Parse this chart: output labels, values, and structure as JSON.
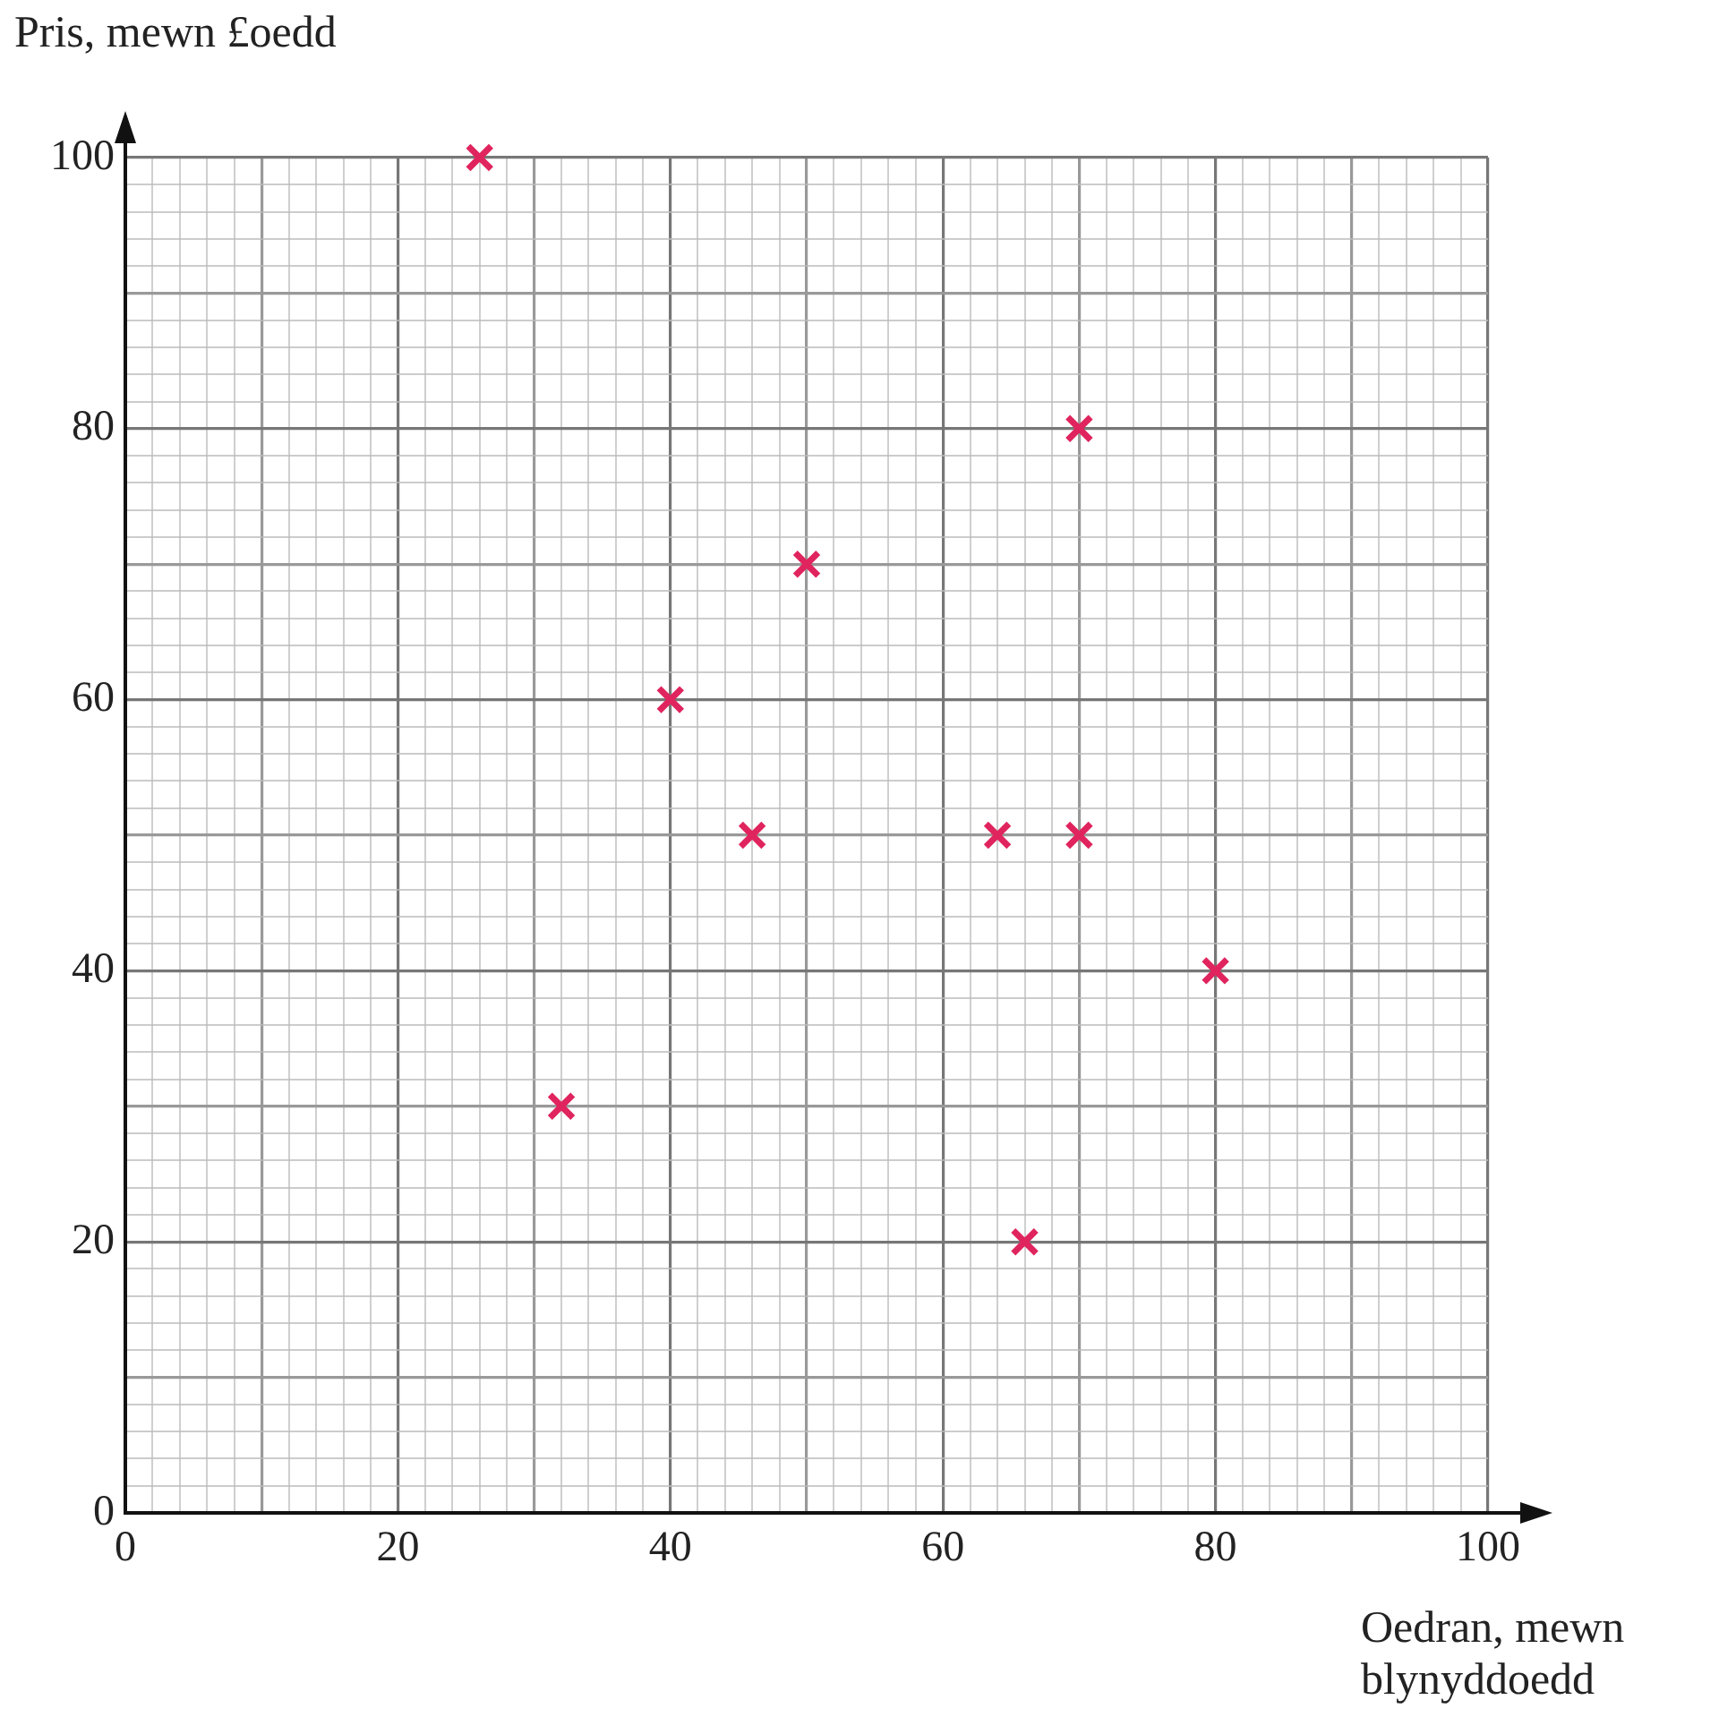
{
  "chart_data": {
    "type": "scatter",
    "xlabel": "Oedran, mewn blynyddoedd",
    "ylabel": "Pris, mewn £oedd",
    "series": [
      {
        "color": "#e0245e",
        "x": [
          26,
          32,
          40,
          46,
          50,
          64,
          66,
          70,
          70,
          80
        ],
        "values": [
          100,
          30,
          60,
          50,
          70,
          50,
          20,
          80,
          50,
          40
        ]
      }
    ],
    "marker": "cross",
    "grid": true,
    "legend": false,
    "xlim": [
      0,
      100
    ],
    "ylim": [
      0,
      100
    ],
    "xticks": [
      0,
      {
        "value": 2,
        "label": null
      },
      {
        "value": 4,
        "label": null
      },
      {
        "value": 6,
        "label": null
      },
      {
        "value": 8,
        "label": null
      },
      {
        "value": 10,
        "label": null
      },
      {
        "value": 12,
        "label": null
      },
      {
        "value": 14,
        "label": null
      },
      {
        "value": 16,
        "label": null
      },
      {
        "value": 18,
        "label": null
      },
      20,
      {
        "value": 22,
        "label": null
      },
      {
        "value": 24,
        "label": null
      },
      {
        "value": 26,
        "label": null
      },
      {
        "value": 28,
        "label": null
      },
      {
        "value": 30,
        "label": null
      },
      {
        "value": 32,
        "label": null
      },
      {
        "value": 34,
        "label": null
      },
      {
        "value": 36,
        "label": null
      },
      {
        "value": 38,
        "label": null
      },
      40,
      {
        "value": 42,
        "label": null
      },
      {
        "value": 44,
        "label": null
      },
      {
        "value": 46,
        "label": null
      },
      {
        "value": 48,
        "label": null
      },
      {
        "value": 50,
        "label": null
      },
      {
        "value": 52,
        "label": null
      },
      {
        "value": 54,
        "label": null
      },
      {
        "value": 56,
        "label": null
      },
      {
        "value": 58,
        "label": null
      },
      60,
      {
        "value": 62,
        "label": null
      },
      {
        "value": 64,
        "label": null
      },
      {
        "value": 66,
        "label": null
      },
      {
        "value": 68,
        "label": null
      },
      {
        "value": 70,
        "label": null
      },
      {
        "value": 72,
        "label": null
      },
      {
        "value": 74,
        "label": null
      },
      {
        "value": 76,
        "label": null
      },
      {
        "value": 78,
        "label": null
      },
      80,
      {
        "value": 82,
        "label": null
      },
      {
        "value": 84,
        "label": null
      },
      {
        "value": 86,
        "label": null
      },
      {
        "value": 88,
        "label": null
      },
      {
        "value": 90,
        "label": null
      },
      {
        "value": 92,
        "label": null
      },
      {
        "value": 94,
        "label": null
      },
      {
        "value": 96,
        "label": null
      },
      {
        "value": 98,
        "label": null
      },
      100
    ],
    "yticks": [
      0,
      {
        "value": 2,
        "label": null
      },
      {
        "value": 4,
        "label": null
      },
      {
        "value": 6,
        "label": null
      },
      {
        "value": 8,
        "label": null
      },
      {
        "value": 10,
        "label": null
      },
      {
        "value": 12,
        "label": null
      },
      {
        "value": 14,
        "label": null
      },
      {
        "value": 16,
        "label": null
      },
      {
        "value": 18,
        "label": null
      },
      20,
      {
        "value": 22,
        "label": null
      },
      {
        "value": 24,
        "label": null
      },
      {
        "value": 26,
        "label": null
      },
      {
        "value": 28,
        "label": null
      },
      {
        "value": 30,
        "label": null
      },
      {
        "value": 32,
        "label": null
      },
      {
        "value": 34,
        "label": null
      },
      {
        "value": 36,
        "label": null
      },
      {
        "value": 38,
        "label": null
      },
      40,
      {
        "value": 42,
        "label": null
      },
      {
        "value": 44,
        "label": null
      },
      {
        "value": 46,
        "label": null
      },
      {
        "value": 48,
        "label": null
      },
      {
        "value": 50,
        "label": null
      },
      {
        "value": 52,
        "label": null
      },
      {
        "value": 54,
        "label": null
      },
      {
        "value": 56,
        "label": null
      },
      {
        "value": 58,
        "label": null
      },
      60,
      {
        "value": 62,
        "label": null
      },
      {
        "value": 64,
        "label": null
      },
      {
        "value": 66,
        "label": null
      },
      {
        "value": 68,
        "label": null
      },
      {
        "value": 70,
        "label": null
      },
      {
        "value": 72,
        "label": null
      },
      {
        "value": 74,
        "label": null
      },
      {
        "value": 76,
        "label": null
      },
      {
        "value": 78,
        "label": null
      },
      80,
      {
        "value": 82,
        "label": null
      },
      {
        "value": 84,
        "label": null
      },
      {
        "value": 86,
        "label": null
      },
      {
        "value": 88,
        "label": null
      },
      {
        "value": 90,
        "label": null
      },
      {
        "value": 92,
        "label": null
      },
      {
        "value": 94,
        "label": null
      },
      {
        "value": 96,
        "label": null
      },
      {
        "value": 98,
        "label": null
      },
      100
    ]
  }
}
